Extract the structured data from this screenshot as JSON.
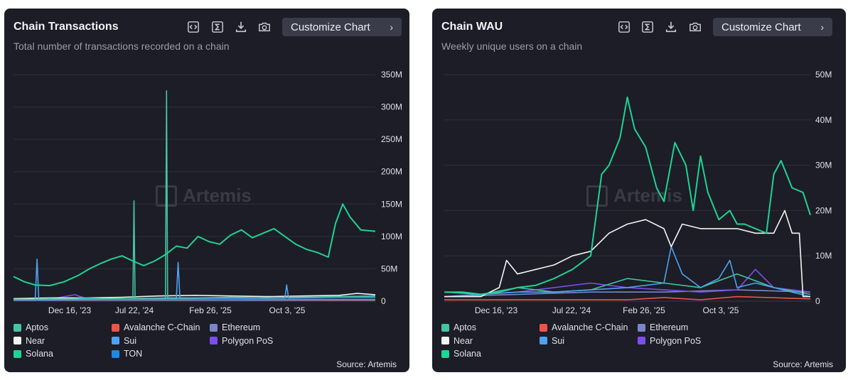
{
  "panels": [
    {
      "title": "Chain Transactions",
      "subtitle": "Total number of transactions recorded on a chain",
      "customize_label": "Customize Chart",
      "source": "Source: Artemis",
      "watermark": "Artemis",
      "icons": [
        "embed-icon",
        "sum-icon",
        "download-icon",
        "camera-icon"
      ]
    },
    {
      "title": "Chain WAU",
      "subtitle": "Weekly unique users on a chain",
      "customize_label": "Customize Chart",
      "source": "Source: Artemis",
      "watermark": "Artemis",
      "icons": [
        "embed-icon",
        "sum-icon",
        "download-icon",
        "camera-icon"
      ]
    }
  ],
  "colors": {
    "Aptos": "#45c4a0",
    "Avalanche C-Chain": "#f0524a",
    "Ethereum": "#7b86c9",
    "Near": "#f4f4f4",
    "Sui": "#4ea2f0",
    "Polygon PoS": "#7c4ef0",
    "Solana": "#1fd394",
    "TON": "#1e88e5"
  },
  "chart_data": [
    {
      "type": "line",
      "title": "Chain Transactions",
      "x_ticks": [
        "Dec 16, '23",
        "Jul 22, '24",
        "Feb 26, '25",
        "Oct 3, '25"
      ],
      "y_ticks": [
        "350M",
        "300M",
        "250M",
        "200M",
        "150M",
        "100M",
        "50M",
        "0"
      ],
      "ylim": [
        0,
        350000000
      ],
      "x_range": [
        "2023-06",
        "2026-01"
      ],
      "legend": [
        "Aptos",
        "Avalanche C-Chain",
        "Ethereum",
        "Near",
        "Sui",
        "Polygon PoS",
        "Solana",
        "TON"
      ],
      "series": [
        {
          "name": "Solana",
          "x": [
            0,
            0.03,
            0.06,
            0.1,
            0.14,
            0.18,
            0.21,
            0.24,
            0.27,
            0.3,
            0.33,
            0.36,
            0.39,
            0.42,
            0.45,
            0.48,
            0.51,
            0.54,
            0.57,
            0.6,
            0.63,
            0.66,
            0.69,
            0.72,
            0.75,
            0.78,
            0.81,
            0.84,
            0.87,
            0.89,
            0.91,
            0.93,
            0.96,
            1.0
          ],
          "y": [
            38,
            30,
            25,
            24,
            30,
            40,
            50,
            58,
            65,
            70,
            62,
            55,
            62,
            72,
            85,
            82,
            100,
            92,
            88,
            102,
            110,
            98,
            105,
            112,
            100,
            88,
            80,
            75,
            68,
            120,
            150,
            130,
            110,
            108
          ]
        },
        {
          "name": "Aptos",
          "x": [
            0,
            0.05,
            0.1,
            0.15,
            0.2,
            0.25,
            0.33,
            0.333,
            0.336,
            0.4,
            0.42,
            0.423,
            0.426,
            0.5,
            0.6,
            0.7,
            0.8,
            0.9,
            1.0
          ],
          "y": [
            3,
            3,
            4,
            3,
            5,
            4,
            4,
            155,
            4,
            4,
            5,
            325,
            5,
            5,
            6,
            5,
            6,
            7,
            8
          ]
        },
        {
          "name": "Sui",
          "x": [
            0,
            0.06,
            0.065,
            0.07,
            0.15,
            0.3,
            0.45,
            0.455,
            0.46,
            0.55,
            0.75,
            0.755,
            0.76,
            0.9,
            1.0
          ],
          "y": [
            2,
            2,
            65,
            2,
            3,
            4,
            4,
            60,
            4,
            5,
            5,
            25,
            5,
            6,
            6
          ]
        },
        {
          "name": "Near",
          "x": [
            0,
            0.1,
            0.2,
            0.3,
            0.4,
            0.5,
            0.6,
            0.7,
            0.8,
            0.9,
            0.95,
            1.0
          ],
          "y": [
            4,
            5,
            5,
            6,
            8,
            9,
            8,
            7,
            8,
            9,
            12,
            10
          ]
        },
        {
          "name": "Polygon PoS",
          "x": [
            0,
            0.1,
            0.17,
            0.2,
            0.3,
            0.4,
            0.5,
            0.6,
            0.7,
            0.8,
            0.9,
            1.0
          ],
          "y": [
            3,
            3,
            10,
            4,
            4,
            5,
            5,
            5,
            5,
            6,
            7,
            8
          ]
        },
        {
          "name": "Ethereum",
          "x": [
            0,
            0.2,
            0.4,
            0.6,
            0.8,
            1.0
          ],
          "y": [
            1,
            1,
            1,
            1,
            2,
            2
          ]
        },
        {
          "name": "Avalanche C-Chain",
          "x": [
            0,
            0.3,
            0.6,
            1.0
          ],
          "y": [
            1,
            1,
            1,
            1
          ]
        },
        {
          "name": "TON",
          "x": [
            0,
            0.3,
            0.6,
            1.0
          ],
          "y": [
            2,
            3,
            3,
            3
          ]
        }
      ]
    },
    {
      "type": "line",
      "title": "Chain WAU",
      "x_ticks": [
        "Dec 16, '23",
        "Jul 22, '24",
        "Feb 26, '25",
        "Oct 3, '25"
      ],
      "y_ticks": [
        "50M",
        "40M",
        "30M",
        "20M",
        "10M",
        "0"
      ],
      "ylim": [
        0,
        50000000
      ],
      "x_range": [
        "2023-06",
        "2026-01"
      ],
      "legend": [
        "Aptos",
        "Avalanche C-Chain",
        "Ethereum",
        "Near",
        "Sui",
        "Polygon PoS",
        "Solana"
      ],
      "series": [
        {
          "name": "Solana",
          "x": [
            0,
            0.05,
            0.1,
            0.15,
            0.2,
            0.25,
            0.3,
            0.35,
            0.4,
            0.43,
            0.45,
            0.48,
            0.5,
            0.52,
            0.55,
            0.58,
            0.6,
            0.63,
            0.66,
            0.68,
            0.7,
            0.72,
            0.75,
            0.78,
            0.8,
            0.82,
            0.85,
            0.88,
            0.9,
            0.92,
            0.95,
            0.98,
            1.0
          ],
          "y": [
            2,
            2,
            1.5,
            2,
            3,
            3.5,
            5,
            7,
            10,
            28,
            30,
            36,
            45,
            38,
            34,
            25,
            22,
            35,
            30,
            20,
            32,
            24,
            18,
            20,
            17,
            17,
            16,
            15,
            28,
            31,
            25,
            24,
            19
          ]
        },
        {
          "name": "Near",
          "x": [
            0,
            0.05,
            0.1,
            0.15,
            0.17,
            0.2,
            0.25,
            0.3,
            0.35,
            0.4,
            0.45,
            0.5,
            0.55,
            0.6,
            0.62,
            0.65,
            0.7,
            0.75,
            0.8,
            0.85,
            0.9,
            0.93,
            0.95,
            0.97,
            0.98,
            1.0
          ],
          "y": [
            1,
            1,
            1,
            3,
            9,
            6,
            7,
            8,
            10,
            11,
            15,
            17,
            18,
            16,
            12,
            17,
            16,
            16,
            16,
            15,
            15,
            20,
            15,
            15,
            1,
            1
          ]
        },
        {
          "name": "Sui",
          "x": [
            0,
            0.1,
            0.2,
            0.3,
            0.4,
            0.5,
            0.6,
            0.62,
            0.65,
            0.7,
            0.75,
            0.78,
            0.8,
            0.85,
            0.9,
            1.0
          ],
          "y": [
            1,
            1.5,
            2,
            2,
            2.5,
            3,
            4,
            12,
            6,
            3,
            5,
            9,
            3,
            4,
            3,
            1
          ]
        },
        {
          "name": "Aptos",
          "x": [
            0,
            0.1,
            0.2,
            0.3,
            0.4,
            0.5,
            0.6,
            0.7,
            0.8,
            0.9,
            1.0
          ],
          "y": [
            2,
            1.5,
            3,
            2,
            2.5,
            5,
            4,
            3,
            6,
            3,
            1.5
          ]
        },
        {
          "name": "Polygon PoS",
          "x": [
            0,
            0.1,
            0.2,
            0.3,
            0.4,
            0.5,
            0.6,
            0.7,
            0.8,
            0.85,
            0.9,
            1.0
          ],
          "y": [
            1,
            1.5,
            2,
            3,
            4,
            3,
            2.5,
            2,
            2.5,
            7,
            3,
            2
          ]
        },
        {
          "name": "Ethereum",
          "x": [
            0,
            0.2,
            0.4,
            0.6,
            0.8,
            1.0
          ],
          "y": [
            1,
            1.5,
            2,
            2,
            2.5,
            2
          ]
        },
        {
          "name": "Avalanche C-Chain",
          "x": [
            0,
            0.2,
            0.5,
            0.6,
            0.7,
            0.8,
            1.0
          ],
          "y": [
            0.3,
            0.3,
            0.3,
            0.8,
            0.3,
            1,
            0.5
          ]
        }
      ]
    }
  ]
}
